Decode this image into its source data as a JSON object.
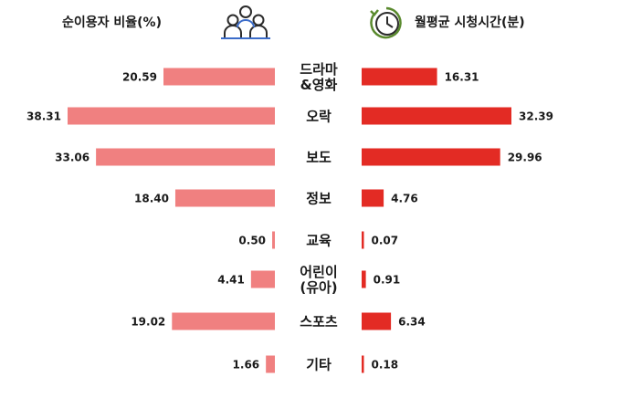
{
  "left_header": "순이용자 비율(%)",
  "right_header": "월평균 시청시간(분)",
  "icons": {
    "left": "people-icon",
    "right": "clock-icon"
  },
  "colors": {
    "left_bar": "#f08080",
    "right_bar": "#e32b24",
    "text": "#1a1a1a"
  },
  "chart_data": {
    "type": "bar",
    "orientation": "horizontal-butterfly",
    "categories": [
      [
        "드라마",
        "&영화"
      ],
      [
        "오락"
      ],
      [
        "보도"
      ],
      [
        "정보"
      ],
      [
        "교육"
      ],
      [
        "어린이",
        "(유아)"
      ],
      [
        "스포츠"
      ],
      [
        "기타"
      ]
    ],
    "series": [
      {
        "name": "순이용자 비율(%)",
        "values": [
          20.59,
          38.31,
          33.06,
          18.4,
          0.5,
          4.41,
          19.02,
          1.66
        ],
        "labels": [
          "20.59",
          "38.31",
          "33.06",
          "18.40",
          "0.50",
          "4.41",
          "19.02",
          "1.66"
        ]
      },
      {
        "name": "월평균 시청시간(분)",
        "values": [
          16.31,
          32.39,
          29.96,
          4.76,
          0.07,
          0.91,
          6.34,
          0.18
        ],
        "labels": [
          "16.31",
          "32.39",
          "29.96",
          "4.76",
          "0.07",
          "0.91",
          "6.34",
          "0.18"
        ]
      }
    ]
  }
}
